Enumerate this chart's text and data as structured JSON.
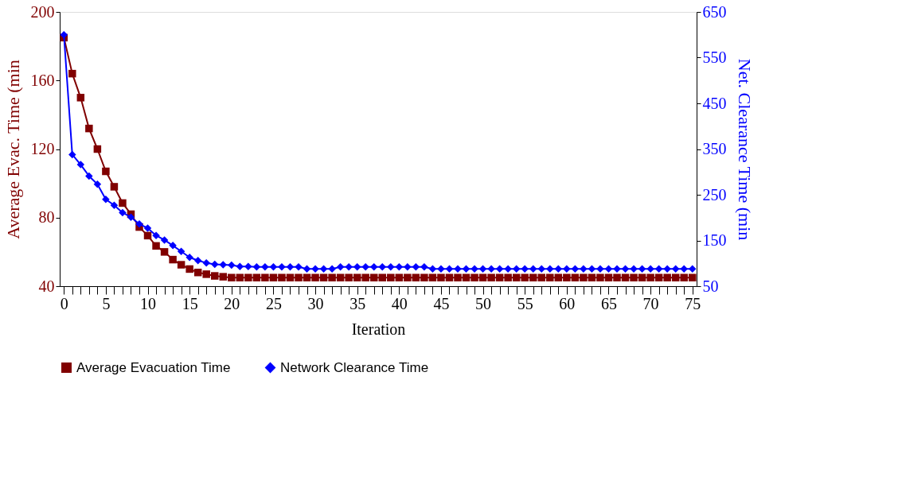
{
  "chart_data": {
    "type": "line",
    "xlabel": "Iteration",
    "ylabel": "Average Evac. Time (min",
    "y2label": "Net. Clearance Time (min",
    "categories": [
      "0",
      null,
      null,
      null,
      null,
      "5",
      null,
      null,
      null,
      null,
      "10",
      null,
      null,
      null,
      null,
      "15",
      null,
      null,
      null,
      null,
      "20",
      null,
      null,
      null,
      null,
      "25",
      null,
      null,
      null,
      null,
      "30",
      null,
      null,
      null,
      null,
      "35",
      null,
      null,
      null,
      null,
      "40",
      null,
      null,
      null,
      null,
      "45",
      null,
      null,
      null,
      null,
      "50",
      null,
      null,
      null,
      null,
      "55",
      null,
      null,
      null,
      null,
      "60",
      null,
      null,
      null,
      null,
      "65",
      null,
      null,
      null,
      null,
      "70",
      null,
      null,
      null,
      null,
      "75"
    ],
    "ylim": [
      40,
      200
    ],
    "yticks": [
      40,
      80,
      120,
      160,
      200
    ],
    "y2lim": [
      50,
      650
    ],
    "y2ticks": [
      50,
      150,
      250,
      350,
      450,
      550,
      650
    ],
    "legend": "bottom",
    "series": [
      {
        "name": "Average Evacuation Time",
        "color": "#800000",
        "marker": "square",
        "values": [
          185,
          164,
          150,
          132,
          120,
          107,
          98,
          88.5,
          82,
          74.5,
          69.5,
          63.5,
          60,
          55.5,
          52.5,
          50,
          48,
          47,
          46,
          45.5,
          45,
          45,
          45,
          45,
          45,
          45,
          45,
          45,
          45,
          45,
          45,
          45,
          45,
          45,
          45,
          45,
          45,
          45,
          45,
          45,
          45,
          45,
          45,
          45,
          45,
          45,
          45,
          45,
          45,
          45,
          45,
          45,
          45,
          45,
          45,
          45,
          45,
          45,
          45,
          45,
          45,
          45,
          45,
          45,
          45,
          45,
          45,
          45,
          45,
          45,
          45,
          45,
          45,
          45,
          45,
          45
        ]
      },
      {
        "name": "Network Clearance Time",
        "color": "#0000ff",
        "marker": "diamond",
        "axis": "y2",
        "values": [
          600,
          338,
          316,
          291,
          273,
          240,
          227,
          211,
          201,
          186,
          177,
          161,
          151,
          139,
          126,
          113,
          106,
          101,
          98,
          97,
          96,
          93,
          93,
          92,
          92,
          92,
          92,
          92,
          92,
          88,
          88,
          88,
          88,
          92,
          92,
          92,
          92,
          92,
          92,
          92,
          92,
          92,
          92,
          92,
          88,
          88,
          88,
          88,
          88,
          88,
          88,
          88,
          88,
          88,
          88,
          88,
          88,
          88,
          88,
          88,
          88,
          88,
          88,
          88,
          88,
          88,
          88,
          88,
          88,
          88,
          88,
          88,
          88,
          88,
          88,
          88
        ]
      }
    ]
  }
}
